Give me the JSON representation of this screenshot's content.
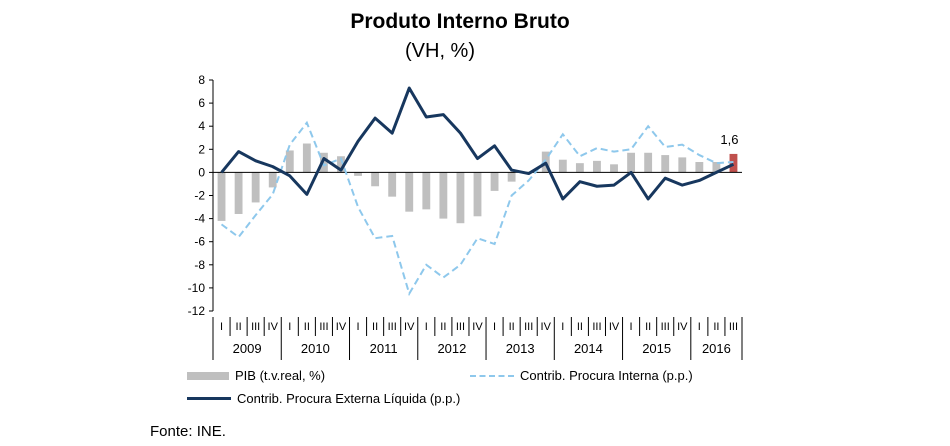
{
  "title": "Produto Interno Bruto",
  "subtitle": "(VH, %)",
  "source": "Fonte: INE.",
  "legend": {
    "pib": "PIB (t.v.real, %)",
    "interna": "Contrib. Procura Interna (p.p.)",
    "externa": "Contrib. Procura Externa Líquida (p.p.)"
  },
  "colors": {
    "bars": "#bfbfbf",
    "last_bar": "#c0504d",
    "interna": "#8ec8ec",
    "externa": "#17375e",
    "axis": "#000000"
  },
  "chart_data": {
    "type": "bar",
    "title": "Produto Interno Bruto",
    "subtitle": "(VH, %)",
    "ylim": [
      -12,
      8
    ],
    "yticks": [
      8,
      6,
      4,
      2,
      0,
      -2,
      -4,
      -6,
      -8,
      -10,
      -12
    ],
    "categories": [
      "I",
      "II",
      "III",
      "IV",
      "I",
      "II",
      "III",
      "IV",
      "I",
      "II",
      "III",
      "IV",
      "I",
      "II",
      "III",
      "IV",
      "I",
      "II",
      "III",
      "IV",
      "I",
      "II",
      "III",
      "IV",
      "I",
      "II",
      "III",
      "IV",
      "I",
      "II",
      "III"
    ],
    "years": [
      {
        "label": "2009",
        "quarters": 4
      },
      {
        "label": "2010",
        "quarters": 4
      },
      {
        "label": "2011",
        "quarters": 4
      },
      {
        "label": "2012",
        "quarters": 4
      },
      {
        "label": "2013",
        "quarters": 4
      },
      {
        "label": "2014",
        "quarters": 4
      },
      {
        "label": "2015",
        "quarters": 4
      },
      {
        "label": "2016",
        "quarters": 3
      }
    ],
    "series": [
      {
        "name": "PIB (t.v.real, %)",
        "kind": "bar",
        "values": [
          -4.2,
          -3.6,
          -2.6,
          -1.3,
          1.9,
          2.5,
          1.7,
          1.4,
          -0.3,
          -1.2,
          -2.1,
          -3.4,
          -3.2,
          -4.0,
          -4.4,
          -3.8,
          -1.6,
          -0.8,
          0.0,
          1.8,
          1.1,
          0.8,
          1.0,
          0.7,
          1.7,
          1.7,
          1.5,
          1.3,
          0.9,
          0.9,
          1.6
        ]
      },
      {
        "name": "Contrib. Procura Interna (p.p.)",
        "kind": "line-dashed",
        "values": [
          -4.5,
          -5.6,
          -3.7,
          -1.9,
          2.4,
          4.3,
          0.6,
          1.2,
          -3.0,
          -5.7,
          -5.5,
          -10.5,
          -8.0,
          -9.1,
          -8.0,
          -5.7,
          -6.2,
          -2.0,
          -0.7,
          1.1,
          3.3,
          1.4,
          2.1,
          1.8,
          2.0,
          4.0,
          2.2,
          2.4,
          1.5,
          0.8,
          0.9
        ]
      },
      {
        "name": "Contrib. Procura Externa Líquida (p.p.)",
        "kind": "line",
        "values": [
          0.0,
          1.8,
          1.0,
          0.5,
          -0.3,
          -1.9,
          1.2,
          0.2,
          2.7,
          4.7,
          3.4,
          7.3,
          4.8,
          5.0,
          3.4,
          1.2,
          2.3,
          0.2,
          -0.1,
          0.8,
          -2.3,
          -0.8,
          -1.2,
          -1.1,
          0.0,
          -2.3,
          -0.5,
          -1.1,
          -0.7,
          0.0,
          0.7
        ]
      }
    ],
    "annotations": [
      {
        "index": 30,
        "text": "1,6"
      }
    ]
  }
}
